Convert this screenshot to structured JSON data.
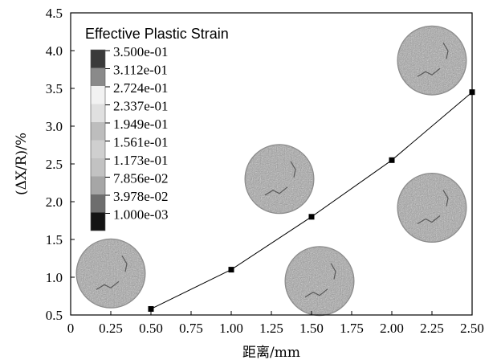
{
  "chart_data": {
    "type": "line",
    "xlabel": "距离/mm",
    "ylabel": "(ΔX/R)/%",
    "xlim": [
      0,
      2.5
    ],
    "ylim": [
      0.5,
      4.5
    ],
    "x_ticks": [
      "0",
      "0.25",
      "0.50",
      "0.75",
      "1.00",
      "1.25",
      "1.50",
      "1.75",
      "2.00",
      "2.25",
      "2.50"
    ],
    "y_ticks": [
      "0.5",
      "1.0",
      "1.5",
      "2.0",
      "2.5",
      "3.0",
      "3.5",
      "4.0",
      "4.5"
    ],
    "series": [
      {
        "x": [
          0.5,
          1.0,
          1.5,
          2.0,
          2.5
        ],
        "y": [
          0.58,
          1.1,
          1.8,
          2.55,
          3.45
        ],
        "marker": "square"
      }
    ],
    "grid": false,
    "legend": {
      "title": "Effective Plastic Strain",
      "entries": [
        {
          "label": "3.500e-01",
          "color": "#3a3a3a"
        },
        {
          "label": "3.112e-01",
          "color": "#8a8a8a"
        },
        {
          "label": "2.724e-01",
          "color": "#f2f2f2"
        },
        {
          "label": "2.337e-01",
          "color": "#e0e0e0"
        },
        {
          "label": "1.949e-01",
          "color": "#bdbdbd"
        },
        {
          "label": "1.561e-01",
          "color": "#cfcfcf"
        },
        {
          "label": "1.173e-01",
          "color": "#c2c2c2"
        },
        {
          "label": "7.856e-02",
          "color": "#a6a6a6"
        },
        {
          "label": "3.978e-02",
          "color": "#6e6e6e"
        },
        {
          "label": "1.000e-03",
          "color": "#141414"
        }
      ]
    },
    "circle_images": [
      {
        "x": 0.25,
        "y": 1.05,
        "name": "contour-circle-0-25"
      },
      {
        "x": 1.3,
        "y": 2.3,
        "name": "contour-circle-1-25"
      },
      {
        "x": 1.55,
        "y": 0.95,
        "name": "contour-circle-1-50"
      },
      {
        "x": 2.25,
        "y": 1.92,
        "name": "contour-circle-2-25"
      },
      {
        "x": 2.25,
        "y": 3.87,
        "name": "contour-circle-2-50"
      }
    ]
  }
}
